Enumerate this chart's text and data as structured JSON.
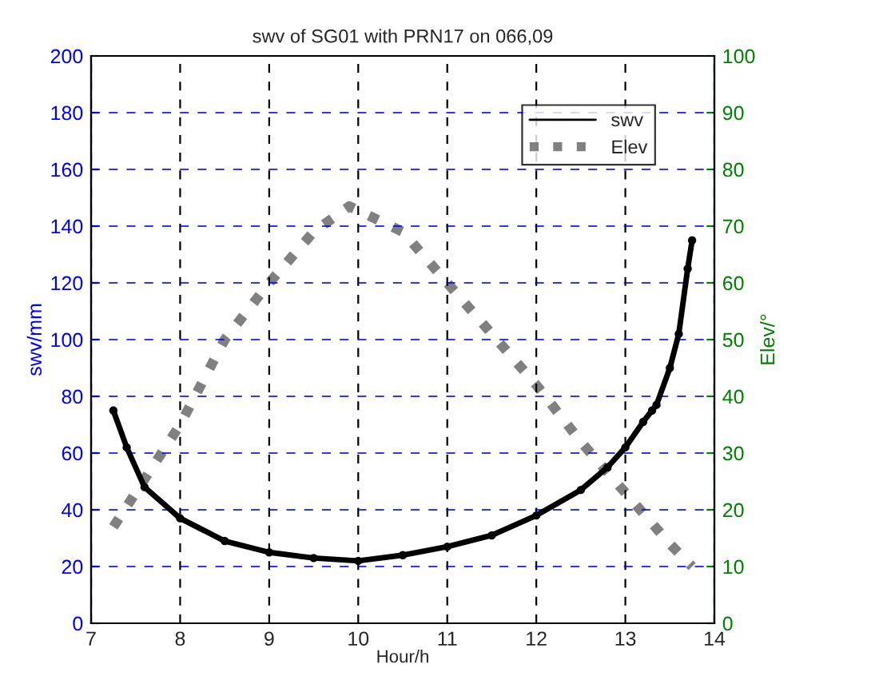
{
  "chart_data": {
    "type": "line",
    "title": "swv of SG01 with PRN17 on 066,09",
    "xlabel": "Hour/h",
    "ylabel": "swv/mm",
    "y2label": "Elev/°",
    "xlim": [
      7,
      14
    ],
    "xticks": [
      7,
      8,
      9,
      10,
      11,
      12,
      13,
      14
    ],
    "ylim": [
      0,
      200
    ],
    "yticks": [
      0,
      20,
      40,
      60,
      80,
      100,
      120,
      140,
      160,
      180,
      200
    ],
    "y2lim": [
      0,
      100
    ],
    "y2ticks": [
      0,
      10,
      20,
      30,
      40,
      50,
      60,
      70,
      80,
      90,
      100
    ],
    "grid": true,
    "legend": "top right",
    "series": [
      {
        "name": "swv",
        "color": "#000000",
        "marker": "circle",
        "line_style": "solid",
        "x": [
          7.25,
          7.4,
          7.6,
          8,
          8.5,
          9,
          9.5,
          10,
          10.5,
          11,
          11.5,
          12,
          12.5,
          12.8,
          13,
          13.2,
          13.3,
          13.35,
          13.5,
          13.6,
          13.7,
          13.75
        ],
        "values": [
          75,
          62,
          48,
          37,
          29,
          25,
          23,
          22,
          24,
          27,
          31,
          38,
          47,
          55,
          62,
          71,
          75,
          77,
          90,
          102,
          125,
          135
        ]
      },
      {
        "name": "Elev",
        "color": "#808080",
        "axis": "y2",
        "marker": "none",
        "line_style": "dotted",
        "x": [
          7.25,
          8,
          8.5,
          9,
          9.5,
          9.9,
          10.5,
          11,
          11.5,
          12,
          12.5,
          13,
          13.5,
          13.75
        ],
        "values": [
          17,
          35,
          50,
          60,
          69,
          73.5,
          69,
          60,
          51,
          42,
          32,
          23,
          14,
          10
        ]
      }
    ]
  }
}
